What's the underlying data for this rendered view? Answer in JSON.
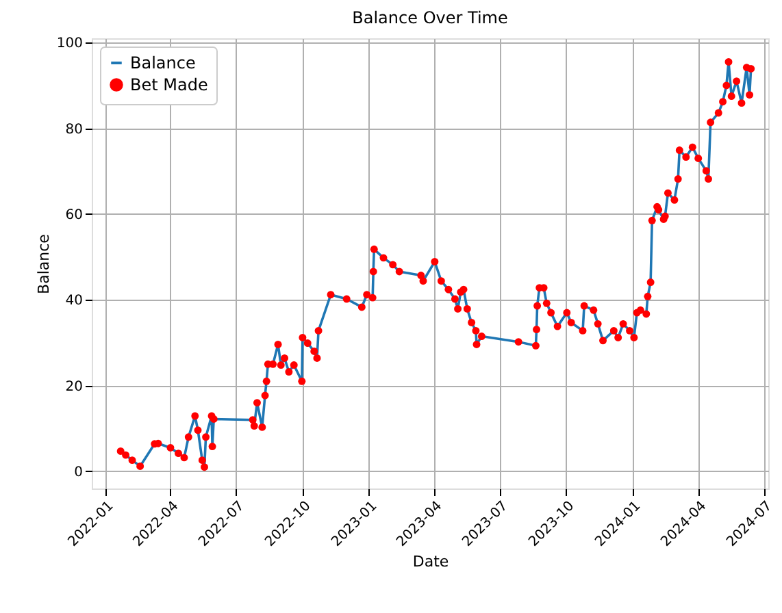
{
  "chart_data": {
    "type": "line",
    "title": "Balance Over Time",
    "xlabel": "Date",
    "ylabel": "Balance",
    "x": [
      "2022-01-22",
      "2022-01-29",
      "2022-02-07",
      "2022-02-18",
      "2022-03-10",
      "2022-03-15",
      "2022-04-01",
      "2022-04-12",
      "2022-04-20",
      "2022-04-26",
      "2022-05-05",
      "2022-05-09",
      "2022-05-15",
      "2022-05-18",
      "2022-05-20",
      "2022-05-28",
      "2022-05-29",
      "2022-05-31",
      "2022-07-24",
      "2022-07-26",
      "2022-07-30",
      "2022-08-06",
      "2022-08-10",
      "2022-08-12",
      "2022-08-14",
      "2022-08-21",
      "2022-08-28",
      "2022-09-01",
      "2022-09-06",
      "2022-09-12",
      "2022-09-19",
      "2022-09-30",
      "2022-10-01",
      "2022-10-08",
      "2022-10-17",
      "2022-10-21",
      "2022-10-23",
      "2022-11-09",
      "2022-12-01",
      "2022-12-22",
      "2022-12-29",
      "2023-01-06",
      "2023-01-07",
      "2023-01-08",
      "2023-01-21",
      "2023-02-03",
      "2023-02-12",
      "2023-03-14",
      "2023-03-17",
      "2023-04-02",
      "2023-04-11",
      "2023-04-21",
      "2023-04-30",
      "2023-05-04",
      "2023-05-08",
      "2023-05-12",
      "2023-05-17",
      "2023-05-23",
      "2023-05-29",
      "2023-05-30",
      "2023-06-06",
      "2023-07-27",
      "2023-08-20",
      "2023-08-21",
      "2023-08-22",
      "2023-08-25",
      "2023-08-31",
      "2023-09-04",
      "2023-09-10",
      "2023-09-19",
      "2023-10-02",
      "2023-10-08",
      "2023-10-24",
      "2023-10-26",
      "2023-11-08",
      "2023-11-14",
      "2023-11-21",
      "2023-12-06",
      "2023-12-12",
      "2023-12-19",
      "2023-12-28",
      "2024-01-03",
      "2024-01-07",
      "2024-01-12",
      "2024-01-20",
      "2024-01-22",
      "2024-01-26",
      "2024-01-28",
      "2024-02-04",
      "2024-02-06",
      "2024-02-13",
      "2024-02-15",
      "2024-02-19",
      "2024-02-28",
      "2024-03-04",
      "2024-03-06",
      "2024-03-15",
      "2024-03-24",
      "2024-04-01",
      "2024-04-12",
      "2024-04-15",
      "2024-04-18",
      "2024-04-29",
      "2024-05-05",
      "2024-05-10",
      "2024-05-13",
      "2024-05-17",
      "2024-05-24",
      "2024-05-31",
      "2024-06-07",
      "2024-06-11",
      "2024-06-13"
    ],
    "series": [
      {
        "name": "Balance",
        "type": "line",
        "color": "#1f77b4",
        "line_style": "solid",
        "values": [
          4.7,
          3.8,
          2.6,
          1.2,
          6.4,
          6.5,
          5.5,
          4.2,
          3.2,
          8,
          12.9,
          9.6,
          2.6,
          1,
          8,
          12.9,
          5.8,
          12.2,
          12,
          10.6,
          16,
          10.3,
          17.7,
          21,
          25,
          25,
          29.6,
          24.8,
          26.4,
          23.2,
          24.8,
          21,
          31.2,
          29.9,
          28,
          26.4,
          32.8,
          41.2,
          40.2,
          38.3,
          41.2,
          40.5,
          46.6,
          51.8,
          49.8,
          48.2,
          46.6,
          45.7,
          44.4,
          48.9,
          44.4,
          42.4,
          40.2,
          37.9,
          41.8,
          42.4,
          37.9,
          34.7,
          32.8,
          29.6,
          31.5,
          30.2,
          29.3,
          33.1,
          38.6,
          42.8,
          42.8,
          39.2,
          37,
          33.8,
          37,
          34.7,
          32.8,
          38.6,
          37.6,
          34.4,
          30.5,
          32.8,
          31.2,
          34.4,
          32.8,
          31.2,
          37,
          37.6,
          36.7,
          40.8,
          44.1,
          58.5,
          61.7,
          61,
          58.8,
          59.5,
          64.9,
          63.3,
          68.2,
          74.9,
          73.3,
          75.6,
          73,
          70.1,
          68.2,
          81.4,
          83.6,
          86.2,
          90,
          95.5,
          87.5,
          91,
          85.9,
          94.2,
          87.8,
          93.9
        ]
      },
      {
        "name": "Bet Made",
        "type": "scatter",
        "color": "#ff0000",
        "marker": "circle",
        "values": [
          4.7,
          3.8,
          2.6,
          1.2,
          6.4,
          6.5,
          5.5,
          4.2,
          3.2,
          8,
          12.9,
          9.6,
          2.6,
          1,
          8,
          12.9,
          5.8,
          12.2,
          12,
          10.6,
          16,
          10.3,
          17.7,
          21,
          25,
          25,
          29.6,
          24.8,
          26.4,
          23.2,
          24.8,
          21,
          31.2,
          29.9,
          28,
          26.4,
          32.8,
          41.2,
          40.2,
          38.3,
          41.2,
          40.5,
          46.6,
          51.8,
          49.8,
          48.2,
          46.6,
          45.7,
          44.4,
          48.9,
          44.4,
          42.4,
          40.2,
          37.9,
          41.8,
          42.4,
          37.9,
          34.7,
          32.8,
          29.6,
          31.5,
          30.2,
          29.3,
          33.1,
          38.6,
          42.8,
          42.8,
          39.2,
          37,
          33.8,
          37,
          34.7,
          32.8,
          38.6,
          37.6,
          34.4,
          30.5,
          32.8,
          31.2,
          34.4,
          32.8,
          31.2,
          37,
          37.6,
          36.7,
          40.8,
          44.1,
          58.5,
          61.7,
          61,
          58.8,
          59.5,
          64.9,
          63.3,
          68.2,
          74.9,
          73.3,
          75.6,
          73,
          70.1,
          68.2,
          81.4,
          83.6,
          86.2,
          90,
          95.5,
          87.5,
          91,
          85.9,
          94.2,
          87.8,
          93.9
        ]
      }
    ],
    "xlim": [
      "2021-12-13",
      "2024-07-07"
    ],
    "xticks": [
      "2022-01",
      "2022-04",
      "2022-07",
      "2022-10",
      "2023-01",
      "2023-04",
      "2023-07",
      "2023-10",
      "2024-01",
      "2024-04",
      "2024-07"
    ],
    "ylim": [
      -4,
      101
    ],
    "yticks": [
      0,
      20,
      40,
      60,
      80,
      100
    ],
    "grid": true,
    "legend": "top left"
  }
}
